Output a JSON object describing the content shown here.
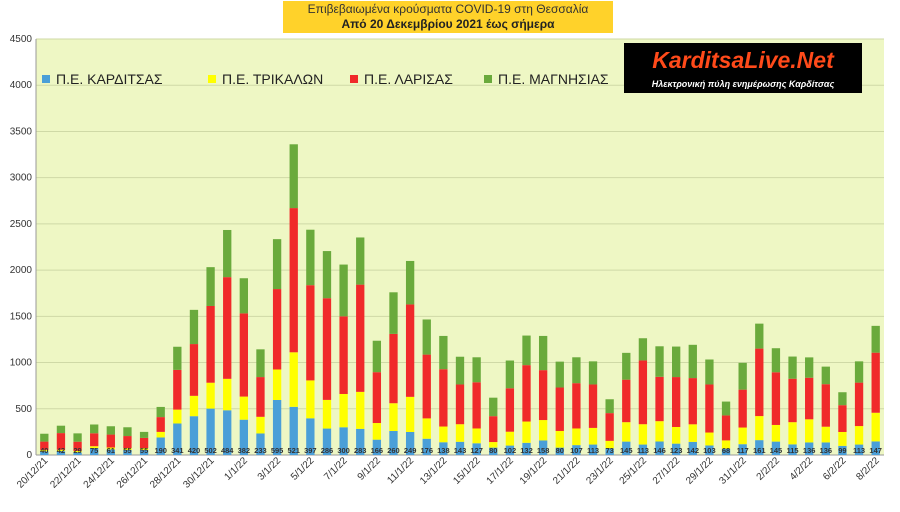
{
  "title": {
    "line1": "Επιβεβαιωμένα κρούσματα COVID-19 στη Θεσσαλία",
    "line2": "Από 20 Δεκεμβρίου 2021 έως σήμερα"
  },
  "logo": {
    "text": "KarditsaLive.Net",
    "subtitle": "Ηλεκτρονική πύλη ενημέρωσης Καρδίτσας"
  },
  "colors": {
    "plot_background": "#eef7c4",
    "grid": "#cfd9a6",
    "karditsa": "#4a9fd8",
    "trikala": "#ffff00",
    "larisa": "#f02a2a",
    "magnisia": "#6aaa3c"
  },
  "chart_data": {
    "type": "bar",
    "stacked": true,
    "categories": [
      "20/12/21",
      "21/12/21",
      "22/12/21",
      "23/12/21",
      "24/12/21",
      "25/12/21",
      "26/12/21",
      "27/12/21",
      "28/12/21",
      "29/12/21",
      "30/12/21",
      "31/12/21",
      "1/1/22",
      "2/1/22",
      "3/1/22",
      "4/1/22",
      "5/1/22",
      "6/1/22",
      "7/1/22",
      "8/1/22",
      "9/1/22",
      "10/1/22",
      "11/1/22",
      "12/1/22",
      "13/1/22",
      "14/1/22",
      "15/1/22",
      "16/1/22",
      "17/1/22",
      "18/1/22",
      "19/1/22",
      "20/1/22",
      "21/1/22",
      "22/1/22",
      "23/1/22",
      "24/1/22",
      "25/1/22",
      "26/1/22",
      "27/1/22",
      "28/1/22",
      "29/1/22",
      "30/1/22",
      "31/1/22",
      "1/2/22",
      "2/2/22",
      "3/2/22",
      "4/2/22",
      "5/2/22",
      "6/2/22",
      "7/2/22",
      "8/2/22"
    ],
    "tick_labels": [
      "20/12/21",
      "22/12/21",
      "24/12/21",
      "26/12/21",
      "28/12/21",
      "30/12/21",
      "1/1/22",
      "3/1/22",
      "5/1/22",
      "7/1/22",
      "9/1/22",
      "11/1/22",
      "13/1/22",
      "15/1/22",
      "17/1/22",
      "19/1/22",
      "21/1/22",
      "23/1/22",
      "25/1/22",
      "27/1/22",
      "29/1/22",
      "31/1/22",
      "2/2/22",
      "4/2/22",
      "6/2/22",
      "8/2/22"
    ],
    "ylim": [
      0,
      4500
    ],
    "yticks": [
      0,
      500,
      1000,
      1500,
      2000,
      2500,
      3000,
      3500,
      4000,
      4500
    ],
    "grid": true,
    "legend_position": "top-left",
    "series": [
      {
        "name": "Π.Ε. ΚΑΡΔΙΤΣΑΣ",
        "color": "#4a9fd8",
        "values": [
          40,
          42,
          29,
          75,
          61,
          55,
          55,
          190,
          341,
          420,
          502,
          484,
          382,
          233,
          595,
          521,
          397,
          286,
          300,
          283,
          166,
          260,
          249,
          176,
          138,
          143,
          127,
          80,
          102,
          132,
          158,
          80,
          107,
          113,
          73,
          145,
          113,
          146,
          123,
          142,
          103,
          68,
          117,
          161,
          145,
          115,
          136,
          136,
          99,
          113,
          147
        ]
      },
      {
        "name": "Π.Ε. ΤΡΙΚΑΛΩΝ",
        "color": "#ffff00",
        "values": [
          15,
          15,
          15,
          20,
          20,
          20,
          20,
          60,
          150,
          220,
          280,
          340,
          250,
          180,
          330,
          590,
          410,
          310,
          360,
          400,
          180,
          300,
          380,
          220,
          170,
          190,
          160,
          60,
          150,
          230,
          220,
          180,
          180,
          180,
          80,
          210,
          220,
          220,
          180,
          190,
          140,
          90,
          180,
          260,
          180,
          240,
          250,
          170,
          150,
          200,
          310
        ]
      },
      {
        "name": "Π.Ε. ΛΑΡΙΣΑΣ",
        "color": "#f02a2a",
        "values": [
          90,
          180,
          100,
          140,
          140,
          130,
          110,
          160,
          430,
          560,
          830,
          1100,
          900,
          430,
          870,
          1560,
          1030,
          1100,
          840,
          1160,
          550,
          750,
          1000,
          690,
          620,
          430,
          500,
          280,
          470,
          610,
          540,
          470,
          490,
          470,
          300,
          460,
          690,
          480,
          540,
          500,
          520,
          270,
          410,
          730,
          570,
          470,
          450,
          460,
          290,
          470,
          650
        ]
      },
      {
        "name": "Π.Ε. ΜΑΓΝΗΣΙΑΣ",
        "color": "#6aaa3c",
        "values": [
          85,
          80,
          90,
          95,
          90,
          95,
          65,
          110,
          250,
          370,
          420,
          510,
          380,
          300,
          540,
          690,
          600,
          510,
          560,
          510,
          340,
          450,
          470,
          380,
          360,
          300,
          270,
          200,
          300,
          320,
          370,
          280,
          280,
          250,
          150,
          290,
          240,
          330,
          330,
          360,
          270,
          150,
          290,
          270,
          260,
          240,
          220,
          190,
          140,
          230,
          290
        ]
      }
    ]
  }
}
